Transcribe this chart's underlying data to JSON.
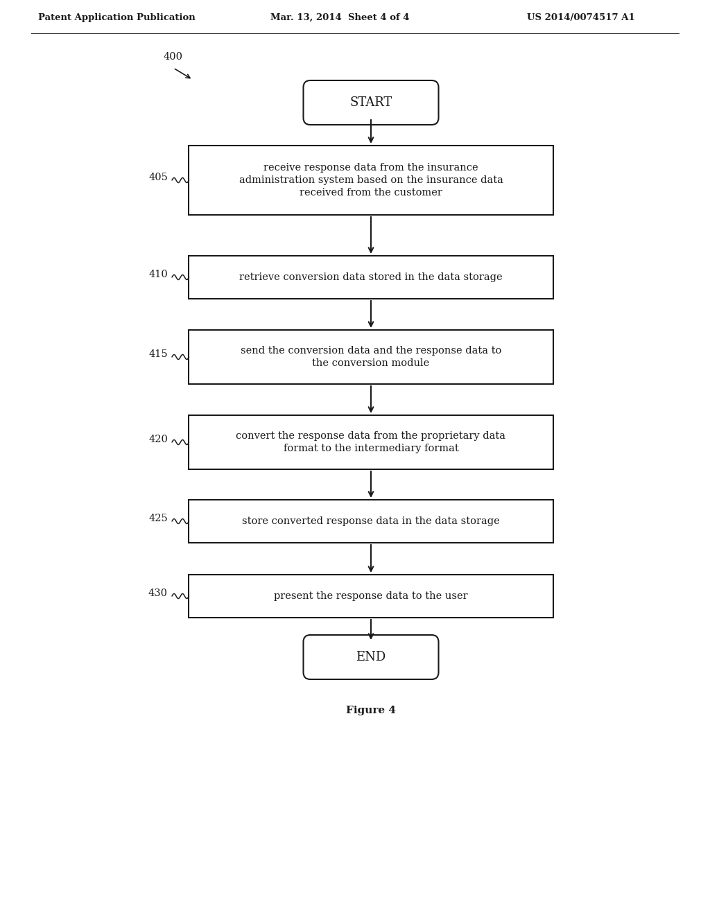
{
  "bg_color": "#ffffff",
  "header_left": "Patent Application Publication",
  "header_mid": "Mar. 13, 2014  Sheet 4 of 4",
  "header_right": "US 2014/0074517 A1",
  "fig_label": "Figure 4",
  "diagram_label": "400",
  "start_label": "START",
  "end_label": "END",
  "boxes": [
    {
      "label": "405",
      "text": "receive response data from the insurance\nadministration system based on the insurance data\nreceived from the customer"
    },
    {
      "label": "410",
      "text": "retrieve conversion data stored in the data storage"
    },
    {
      "label": "415",
      "text": "send the conversion data and the response data to\nthe conversion module"
    },
    {
      "label": "420",
      "text": "convert the response data from the proprietary data\nformat to the intermediary format"
    },
    {
      "label": "425",
      "text": "store converted response data in the data storage"
    },
    {
      "label": "430",
      "text": "present the response data to the user"
    }
  ],
  "box_color": "#ffffff",
  "box_edge_color": "#1a1a1a",
  "text_color": "#1a1a1a",
  "arrow_color": "#1a1a1a",
  "line_width": 1.5,
  "font_size_box": 10.5,
  "font_size_label": 10.5,
  "font_size_header": 9.5,
  "font_size_fig": 11,
  "font_size_terminal": 13
}
